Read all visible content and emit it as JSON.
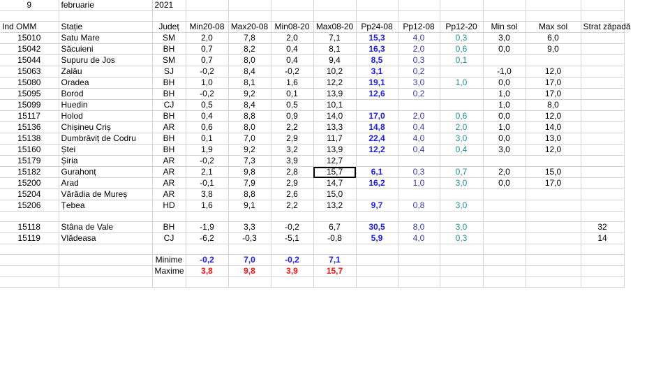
{
  "date": {
    "day": "9",
    "month": "februarie",
    "year": "2021"
  },
  "headers": [
    "Ind OMM",
    "Stație",
    "Județ",
    "Min20-08",
    "Max20-08",
    "Min08-20",
    "Max08-20",
    "Pp24-08",
    "Pp12-08",
    "Pp12-20",
    "Min sol",
    "Max sol",
    "Strat zăpadă"
  ],
  "stations": [
    [
      "15010",
      "Satu Mare",
      "SM",
      "2,0",
      "7,8",
      "2,0",
      "7,1",
      "15,3",
      "4,0",
      "0,3",
      "3,0",
      "6,0",
      ""
    ],
    [
      "15042",
      "Săcuieni",
      "BH",
      "0,7",
      "8,2",
      "0,4",
      "8,1",
      "16,3",
      "2,0",
      "0,6",
      "0,0",
      "9,0",
      ""
    ],
    [
      "15044",
      "Supuru de Jos",
      "SM",
      "0,7",
      "8,0",
      "0,4",
      "9,4",
      "8,5",
      "0,3",
      "0,1",
      "",
      "",
      ""
    ],
    [
      "15063",
      "Zalău",
      "SJ",
      "-0,2",
      "8,4",
      "-0,2",
      "10,2",
      "3,1",
      "0,2",
      "",
      "-1,0",
      "12,0",
      ""
    ],
    [
      "15080",
      "Oradea",
      "BH",
      "1,0",
      "8,1",
      "1,6",
      "12,2",
      "19,1",
      "3,0",
      "1,0",
      "0,0",
      "17,0",
      ""
    ],
    [
      "15095",
      "Borod",
      "BH",
      "-0,2",
      "9,2",
      "0,1",
      "13,9",
      "12,6",
      "0,2",
      "",
      "1,0",
      "17,0",
      ""
    ],
    [
      "15099",
      "Huedin",
      "CJ",
      "0,5",
      "8,4",
      "0,5",
      "10,1",
      "",
      "",
      "",
      "1,0",
      "8,0",
      ""
    ],
    [
      "15117",
      "Holod",
      "BH",
      "0,4",
      "8,8",
      "0,9",
      "14,0",
      "17,0",
      "2,0",
      "0,6",
      "0,0",
      "12,0",
      ""
    ],
    [
      "15136",
      "Chișineu   Criș",
      "AR",
      "0,6",
      "8,0",
      "2,2",
      "13,3",
      "14,8",
      "0,4",
      "2,0",
      "1,0",
      "14,0",
      ""
    ],
    [
      "15138",
      "Dumbrăviț  de Codru",
      "BH",
      "0,1",
      "7,0",
      "2,9",
      "11,7",
      "22,4",
      "4,0",
      "3,0",
      "0,0",
      "13,0",
      ""
    ],
    [
      "15160",
      "Ștei",
      "BH",
      "1,9",
      "9,2",
      "3,2",
      "13,9",
      "12,2",
      "0,4",
      "0,4",
      "3,0",
      "12,0",
      ""
    ],
    [
      "15179",
      "Șiria",
      "AR",
      "-0,2",
      "7,3",
      "3,9",
      "12,7",
      "",
      "",
      "",
      "",
      "",
      ""
    ],
    [
      "15182",
      "Gurahonț",
      "AR",
      "2,1",
      "9,8",
      "2,8",
      "15,7",
      "6,1",
      "0,3",
      "0,7",
      "2,0",
      "15,0",
      ""
    ],
    [
      "15200",
      "Arad",
      "AR",
      "-0,1",
      "7,9",
      "2,9",
      "14,7",
      "16,2",
      "1,0",
      "3,0",
      "0,0",
      "17,0",
      ""
    ],
    [
      "15204",
      "Vărădia de Mureș",
      "AR",
      "3,8",
      "8,8",
      "2,6",
      "15,0",
      "",
      "",
      "",
      "",
      "",
      ""
    ],
    [
      "15206",
      "Țebea",
      "HD",
      "1,6",
      "9,1",
      "2,2",
      "13,2",
      "9,7",
      "0,8",
      "3,0",
      "",
      "",
      ""
    ]
  ],
  "mountain": [
    [
      "15118",
      "Stâna de Vale",
      "BH",
      "-1,9",
      "3,3",
      "-0,2",
      "6,7",
      "30,5",
      "8,0",
      "3,0",
      "",
      "",
      "32"
    ],
    [
      "15119",
      "Vlădeasa",
      "CJ",
      "-6,2",
      "-0,3",
      "-5,1",
      "-0,8",
      "5,9",
      "4,0",
      "0,3",
      "",
      "",
      "14"
    ]
  ],
  "summary": {
    "min_label": "Minime",
    "max_label": "Maxime",
    "min_values": [
      "-0,2",
      "7,0",
      "-0,2",
      "7,1"
    ],
    "max_values": [
      "3,8",
      "9,8",
      "3,9",
      "15,7"
    ]
  },
  "selected_cell": "Max08-20 / 15182",
  "colors": {
    "pp24": "#1a1aff",
    "pp12_08": "#3838a8",
    "pp12_20": "#1f8f8f",
    "maxime": "#ff1010",
    "minime": "#1a1aff",
    "grid": "#d4d4d4"
  }
}
